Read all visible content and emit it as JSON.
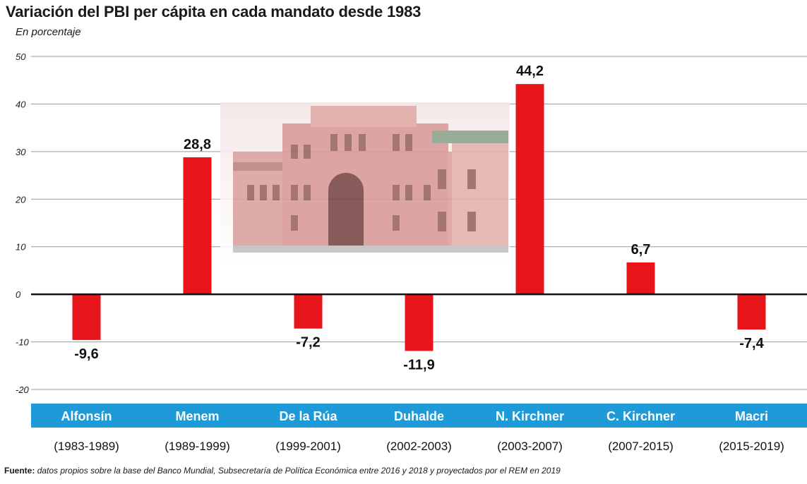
{
  "title": "Variación del PBI per cápita en cada mandato desde 1983",
  "subtitle": "En porcentaje",
  "footer": {
    "label": "Fuente:",
    "text": "datos propios sobre la base del Banco Mundial, Subsecretaría de Política Económica entre 2016 y 2018 y proyectados por el REM en 2019"
  },
  "colors": {
    "bar": "#e8161b",
    "band": "#1e9ad9",
    "band_text": "#ffffff",
    "grid": "#9a9a9a",
    "zero": "#111111"
  },
  "chart_data": {
    "type": "bar",
    "categories": [
      "Alfonsín",
      "Menem",
      "De la Rúa",
      "Duhalde",
      "N. Kirchner",
      "C. Kirchner",
      "Macri"
    ],
    "periods": [
      "(1983-1989)",
      "(1989-1999)",
      "(1999-2001)",
      "(2002-2003)",
      "(2003-2007)",
      "(2007-2015)",
      "(2015-2019)"
    ],
    "values": [
      -9.6,
      28.8,
      -7.2,
      -11.9,
      44.2,
      6.7,
      -7.4
    ],
    "value_labels": [
      "-9,6",
      "28,8",
      "-7,2",
      "-11,9",
      "44,2",
      "6,7",
      "-7,4"
    ],
    "ylim": [
      -20,
      50
    ],
    "yticks": [
      50,
      40,
      30,
      20,
      10,
      0,
      -10,
      -20
    ],
    "grid": true
  }
}
